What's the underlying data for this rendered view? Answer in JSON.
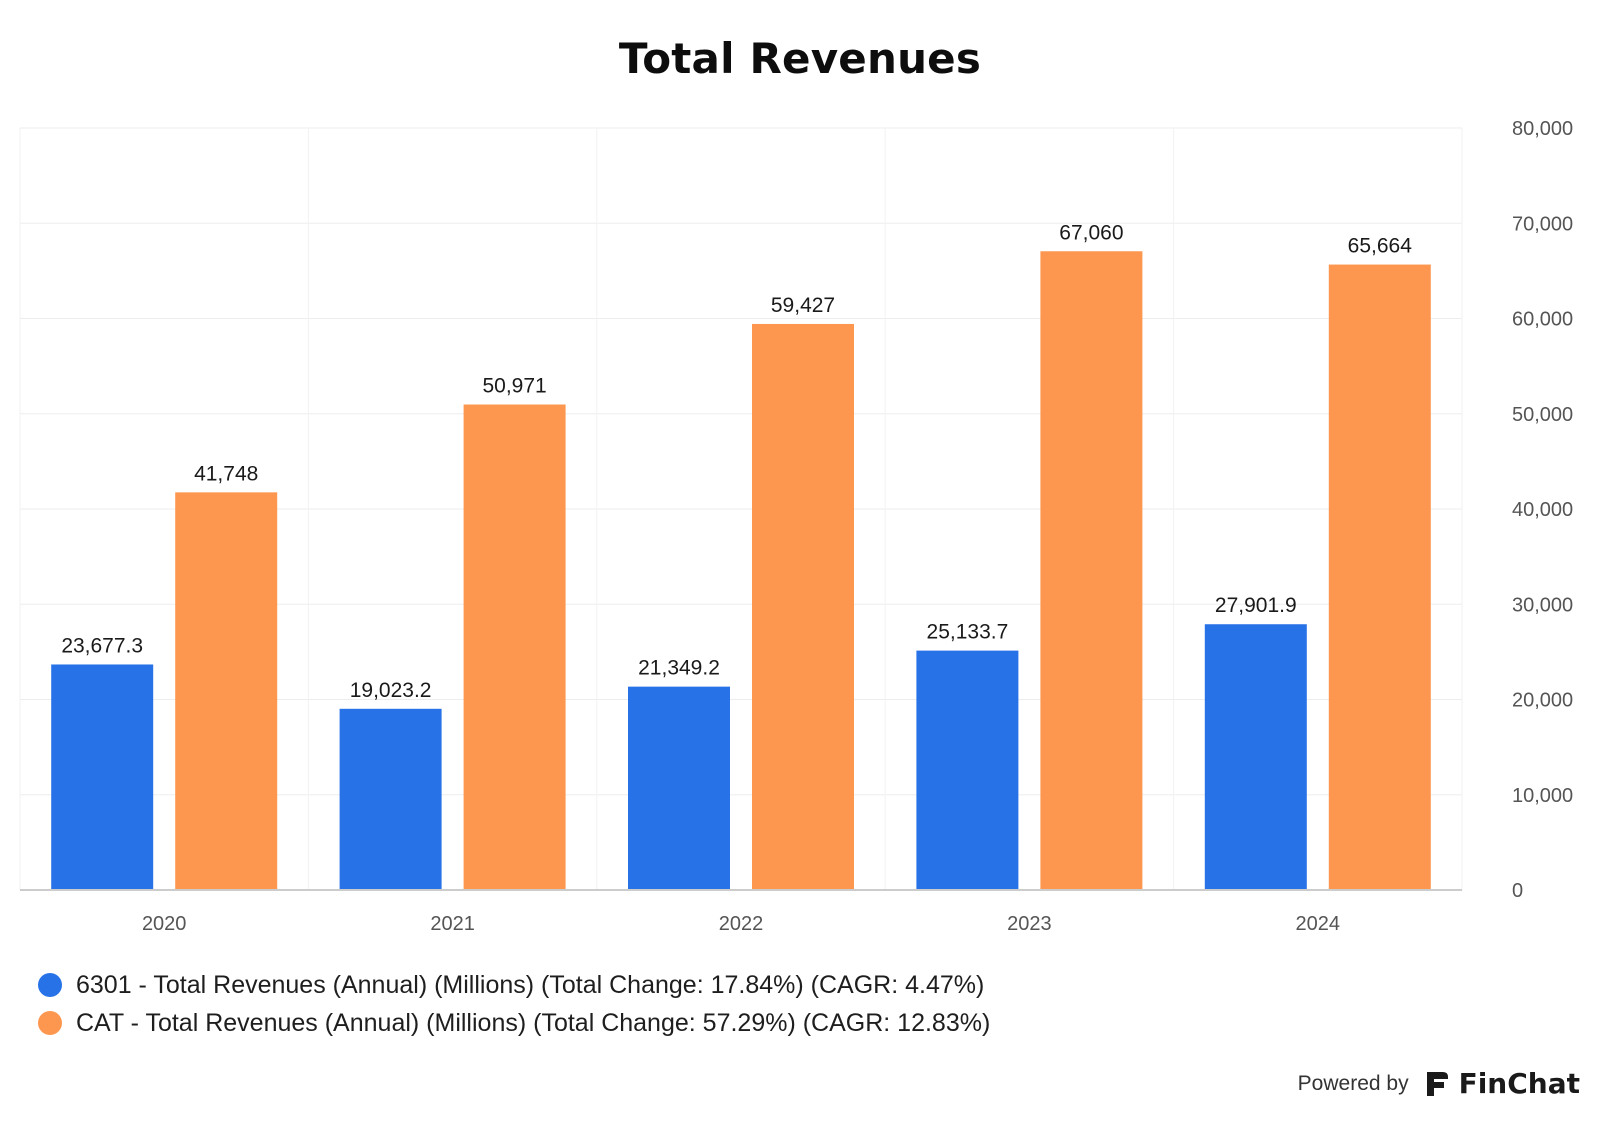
{
  "chart_data": {
    "type": "bar",
    "title": "Total Revenues",
    "categories": [
      "2020",
      "2021",
      "2022",
      "2023",
      "2024"
    ],
    "series": [
      {
        "name": "6301 - Total Revenues (Annual) (Millions) (Total Change: 17.84%) (CAGR: 4.47%)",
        "color": "#2872e8",
        "values": [
          23677.3,
          19023.2,
          21349.2,
          25133.7,
          27901.9
        ],
        "labels": [
          "23,677.3",
          "19,023.2",
          "21,349.2",
          "25,133.7",
          "27,901.9"
        ]
      },
      {
        "name": "CAT - Total Revenues (Annual) (Millions) (Total Change: 57.29%) (CAGR: 12.83%)",
        "color": "#fd974f",
        "values": [
          41748,
          50971,
          59427,
          67060,
          65664
        ],
        "labels": [
          "41,748",
          "50,971",
          "59,427",
          "67,060",
          "65,664"
        ]
      }
    ],
    "ylim": [
      0,
      80000
    ],
    "y_ticks": [
      "0",
      "10,000",
      "20,000",
      "30,000",
      "40,000",
      "50,000",
      "60,000",
      "70,000",
      "80,000"
    ],
    "y_axis_position": "right",
    "grid": true,
    "legend_position": "bottom-left"
  },
  "footer": {
    "powered_by": "Powered by",
    "brand": "FinChat",
    "logo_icon": "finchat-logo-icon"
  }
}
